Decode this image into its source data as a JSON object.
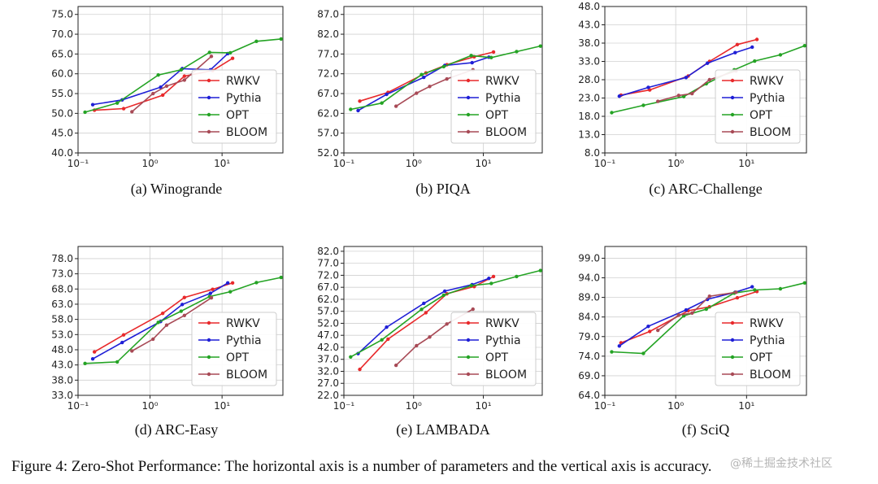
{
  "figure_caption": "Figure 4: Zero-Shot Performance: The horizontal axis is a number of parameters and the vertical axis is accuracy.",
  "watermark": "@稀土掘金技术社区",
  "colors": {
    "RWKV": "#e8292b",
    "Pythia": "#1f1fd6",
    "OPT": "#24a324",
    "BLOOM": "#a84a56"
  },
  "chart_data": [
    {
      "type": "line",
      "caption": "(a) Winogrande",
      "xscale": "log",
      "xlim": [
        0.1,
        70
      ],
      "xticks": [
        "10⁻¹",
        "10⁰",
        "10¹"
      ],
      "ylim": [
        40,
        77
      ],
      "yticks": [
        "40.0",
        "45.0",
        "50.0",
        "55.0",
        "60.0",
        "65.0",
        "70.0",
        "75.0"
      ],
      "ytick_values": [
        40,
        45,
        50,
        55,
        60,
        65,
        70,
        75
      ],
      "legend": [
        "RWKV",
        "Pythia",
        "OPT",
        "BLOOM"
      ],
      "series": [
        {
          "name": "RWKV",
          "x": [
            0.169,
            0.43,
            1.5,
            3,
            7.4,
            14
          ],
          "y": [
            50.8,
            51.2,
            54.6,
            59.4,
            60.8,
            63.9
          ]
        },
        {
          "name": "Pythia",
          "x": [
            0.16,
            0.41,
            1.4,
            2.8,
            6.9,
            12
          ],
          "y": [
            52.2,
            53.4,
            56.6,
            61.3,
            61.0,
            65.1
          ]
        },
        {
          "name": "OPT",
          "x": [
            0.125,
            0.35,
            1.3,
            2.7,
            6.7,
            13,
            30,
            66
          ],
          "y": [
            50.3,
            52.6,
            59.7,
            61.0,
            65.4,
            65.3,
            68.2,
            68.8
          ]
        },
        {
          "name": "BLOOM",
          "x": [
            0.56,
            1.1,
            1.7,
            3,
            7.1
          ],
          "y": [
            50.4,
            55.0,
            56.9,
            58.4,
            64.4
          ]
        }
      ]
    },
    {
      "type": "line",
      "caption": "(b) PIQA",
      "xscale": "log",
      "xlim": [
        0.1,
        70
      ],
      "xticks": [
        "10⁻¹",
        "10⁰",
        "10¹"
      ],
      "ylim": [
        52,
        89
      ],
      "yticks": [
        "52.0",
        "57.0",
        "62.0",
        "67.0",
        "72.0",
        "77.0",
        "82.0",
        "87.0"
      ],
      "ytick_values": [
        52,
        57,
        62,
        67,
        72,
        77,
        82,
        87
      ],
      "legend": [
        "RWKV",
        "Pythia",
        "OPT",
        "BLOOM"
      ],
      "series": [
        {
          "name": "RWKV",
          "x": [
            0.169,
            0.43,
            1.5,
            3,
            7.4,
            14
          ],
          "y": [
            65.1,
            67.3,
            72.2,
            74.3,
            76.3,
            77.5
          ]
        },
        {
          "name": "Pythia",
          "x": [
            0.16,
            0.41,
            1.4,
            2.8,
            6.9,
            12
          ],
          "y": [
            62.7,
            66.8,
            71.1,
            74.1,
            74.8,
            76.2
          ]
        },
        {
          "name": "OPT",
          "x": [
            0.125,
            0.35,
            1.3,
            2.7,
            6.7,
            13,
            30,
            66
          ],
          "y": [
            63.0,
            64.6,
            71.8,
            73.8,
            76.6,
            76.1,
            77.6,
            79.0
          ]
        },
        {
          "name": "BLOOM",
          "x": [
            0.56,
            1.1,
            1.7,
            3,
            7.1
          ],
          "y": [
            63.8,
            67.1,
            68.8,
            70.7,
            73.0
          ]
        }
      ]
    },
    {
      "type": "line",
      "caption": "(c) ARC-Challenge",
      "xscale": "log",
      "xlim": [
        0.1,
        70
      ],
      "xticks": [
        "10⁻¹",
        "10⁰",
        "10¹"
      ],
      "ylim": [
        8,
        48
      ],
      "yticks": [
        "8.0",
        "13.0",
        "18.0",
        "23.0",
        "28.0",
        "33.0",
        "38.0",
        "43.0",
        "48.0"
      ],
      "ytick_values": [
        8,
        13,
        18,
        23,
        28,
        33,
        38,
        43,
        48
      ],
      "legend": [
        "RWKV",
        "Pythia",
        "OPT",
        "BLOOM"
      ],
      "series": [
        {
          "name": "RWKV",
          "x": [
            0.169,
            0.43,
            1.5,
            3,
            7.4,
            14
          ],
          "y": [
            23.8,
            25.2,
            29.0,
            33.0,
            37.6,
            39.0
          ]
        },
        {
          "name": "Pythia",
          "x": [
            0.16,
            0.41,
            1.4,
            2.8,
            6.9,
            12
          ],
          "y": [
            23.5,
            25.9,
            28.6,
            32.5,
            35.4,
            36.9
          ]
        },
        {
          "name": "OPT",
          "x": [
            0.125,
            0.35,
            1.3,
            2.7,
            6.7,
            13,
            30,
            66
          ],
          "y": [
            19.0,
            21.0,
            23.4,
            26.9,
            30.7,
            33.1,
            34.8,
            37.3
          ]
        },
        {
          "name": "BLOOM",
          "x": [
            0.56,
            1.1,
            1.7,
            3,
            7.1
          ],
          "y": [
            22.1,
            23.7,
            24.2,
            28.0,
            30.4
          ]
        }
      ]
    },
    {
      "type": "line",
      "caption": "(d) ARC-Easy",
      "xscale": "log",
      "xlim": [
        0.1,
        70
      ],
      "xticks": [
        "10⁻¹",
        "10⁰",
        "10¹"
      ],
      "ylim": [
        33,
        82
      ],
      "yticks": [
        "33.0",
        "38.0",
        "43.0",
        "48.0",
        "53.0",
        "58.0",
        "63.0",
        "68.0",
        "73.0",
        "78.0"
      ],
      "ytick_values": [
        33,
        38,
        43,
        48,
        53,
        58,
        63,
        68,
        73,
        78
      ],
      "legend": [
        "RWKV",
        "Pythia",
        "OPT",
        "BLOOM"
      ],
      "series": [
        {
          "name": "RWKV",
          "x": [
            0.169,
            0.43,
            1.5,
            3,
            7.4,
            14
          ],
          "y": [
            47.3,
            52.9,
            60.0,
            65.2,
            67.9,
            70.0
          ]
        },
        {
          "name": "Pythia",
          "x": [
            0.16,
            0.41,
            1.4,
            2.8,
            6.9,
            12
          ],
          "y": [
            45.0,
            50.4,
            57.3,
            62.9,
            66.6,
            70.0
          ]
        },
        {
          "name": "OPT",
          "x": [
            0.125,
            0.35,
            1.3,
            2.7,
            6.7,
            13,
            30,
            66
          ],
          "y": [
            43.5,
            44.0,
            57.0,
            60.7,
            65.5,
            67.1,
            70.1,
            71.8
          ]
        },
        {
          "name": "BLOOM",
          "x": [
            0.56,
            1.1,
            1.7,
            3,
            7.1
          ],
          "y": [
            47.6,
            51.5,
            56.1,
            59.3,
            65.1
          ]
        }
      ]
    },
    {
      "type": "line",
      "caption": "(e) LAMBADA",
      "xscale": "log",
      "xlim": [
        0.1,
        70
      ],
      "xticks": [
        "10⁻¹",
        "10⁰",
        "10¹"
      ],
      "ylim": [
        22,
        84
      ],
      "yticks": [
        "22.0",
        "27.0",
        "32.0",
        "37.0",
        "42.0",
        "47.0",
        "52.0",
        "57.0",
        "62.0",
        "67.0",
        "72.0",
        "77.0",
        "82.0"
      ],
      "ytick_values": [
        22,
        27,
        32,
        37,
        42,
        47,
        52,
        57,
        62,
        67,
        72,
        77,
        82
      ],
      "legend": [
        "RWKV",
        "Pythia",
        "OPT",
        "BLOOM"
      ],
      "series": [
        {
          "name": "RWKV",
          "x": [
            0.169,
            0.43,
            1.5,
            3,
            7.4,
            14
          ],
          "y": [
            32.8,
            45.4,
            56.4,
            64.3,
            67.3,
            71.5
          ]
        },
        {
          "name": "Pythia",
          "x": [
            0.16,
            0.41,
            1.4,
            2.8,
            6.9,
            12
          ],
          "y": [
            39.4,
            50.4,
            60.3,
            65.4,
            68.1,
            70.7
          ]
        },
        {
          "name": "OPT",
          "x": [
            0.125,
            0.35,
            1.3,
            2.7,
            6.7,
            13,
            30,
            66
          ],
          "y": [
            38.0,
            45.1,
            57.8,
            63.7,
            67.7,
            68.6,
            71.5,
            74.0
          ]
        },
        {
          "name": "BLOOM",
          "x": [
            0.56,
            1.1,
            1.7,
            3,
            7.1
          ],
          "y": [
            34.5,
            42.7,
            46.3,
            51.7,
            57.9
          ]
        }
      ]
    },
    {
      "type": "line",
      "caption": "(f) SciQ",
      "xscale": "log",
      "xlim": [
        0.1,
        70
      ],
      "xticks": [
        "10⁻¹",
        "10⁰",
        "10¹"
      ],
      "ylim": [
        64,
        102
      ],
      "yticks": [
        "64.0",
        "69.0",
        "74.0",
        "79.0",
        "84.0",
        "89.0",
        "94.0",
        "99.0"
      ],
      "ytick_values": [
        64,
        69,
        74,
        79,
        84,
        89,
        94,
        99
      ],
      "legend": [
        "RWKV",
        "Pythia",
        "OPT",
        "BLOOM"
      ],
      "series": [
        {
          "name": "RWKV",
          "x": [
            0.169,
            0.43,
            1.5,
            3,
            7.4,
            14
          ],
          "y": [
            77.4,
            80.3,
            85.6,
            86.6,
            88.9,
            90.5
          ]
        },
        {
          "name": "Pythia",
          "x": [
            0.16,
            0.41,
            1.4,
            2.8,
            6.9,
            12
          ],
          "y": [
            76.6,
            81.6,
            85.8,
            88.5,
            90.3,
            91.7
          ]
        },
        {
          "name": "OPT",
          "x": [
            0.125,
            0.35,
            1.3,
            2.7,
            6.7,
            13,
            30,
            66
          ],
          "y": [
            75.1,
            74.7,
            84.3,
            86.0,
            90.1,
            90.9,
            91.2,
            92.7
          ]
        },
        {
          "name": "BLOOM",
          "x": [
            0.56,
            1.1,
            1.7,
            3,
            7.1
          ],
          "y": [
            80.6,
            84.5,
            85.0,
            89.3,
            90.3
          ]
        }
      ]
    }
  ]
}
